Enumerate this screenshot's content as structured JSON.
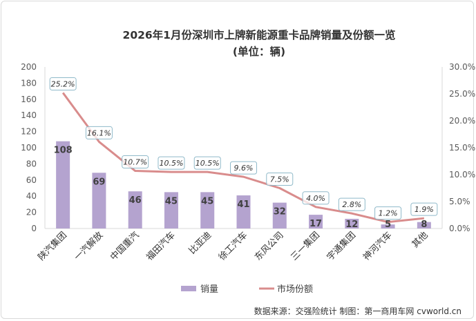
{
  "chart_data": {
    "type": "bar+line",
    "title": "2026年1月份深圳市上牌新能源重卡品牌销量及份额一览",
    "subtitle": "(单位：辆)",
    "categories": [
      "陕汽集团",
      "一汽解放",
      "中国重汽",
      "福田汽车",
      "比亚迪",
      "徐工汽车",
      "东风公司",
      "三一集团",
      "宇通集团",
      "神河汽车",
      "其他"
    ],
    "series": [
      {
        "name": "销量",
        "type": "bar",
        "axis": "left",
        "color": "#b4a3cf",
        "values": [
          108,
          69,
          46,
          45,
          45,
          41,
          32,
          17,
          12,
          5,
          8
        ],
        "labels": [
          "108",
          "69",
          "46",
          "45",
          "45",
          "41",
          "32",
          "17",
          "12",
          "5",
          "8"
        ]
      },
      {
        "name": "市场份额",
        "type": "line",
        "axis": "right",
        "color": "#d98c8c",
        "values": [
          25.2,
          16.1,
          10.7,
          10.5,
          10.5,
          9.6,
          7.5,
          4.0,
          2.8,
          1.2,
          1.9
        ],
        "labels": [
          "25.2%",
          "16.1%",
          "10.7%",
          "10.5%",
          "10.5%",
          "9.6%",
          "7.5%",
          "4.0%",
          "2.8%",
          "1.2%",
          "1.9%"
        ]
      }
    ],
    "y_left": {
      "min": 0,
      "max": 200,
      "step": 20,
      "ticks": [
        "0",
        "20",
        "40",
        "60",
        "80",
        "100",
        "120",
        "140",
        "160",
        "180",
        "200"
      ]
    },
    "y_right": {
      "min": 0,
      "max": 30,
      "step": 5,
      "ticks": [
        "0.0%",
        "5.0%",
        "10.0%",
        "15.0%",
        "20.0%",
        "25.0%",
        "30.0%"
      ]
    },
    "grid": false,
    "legend": {
      "position": "bottom",
      "items": [
        "销量",
        "市场份额"
      ]
    },
    "source": "数据来源：交强险统计 制图：第一商用车网 cvworld.cn"
  }
}
